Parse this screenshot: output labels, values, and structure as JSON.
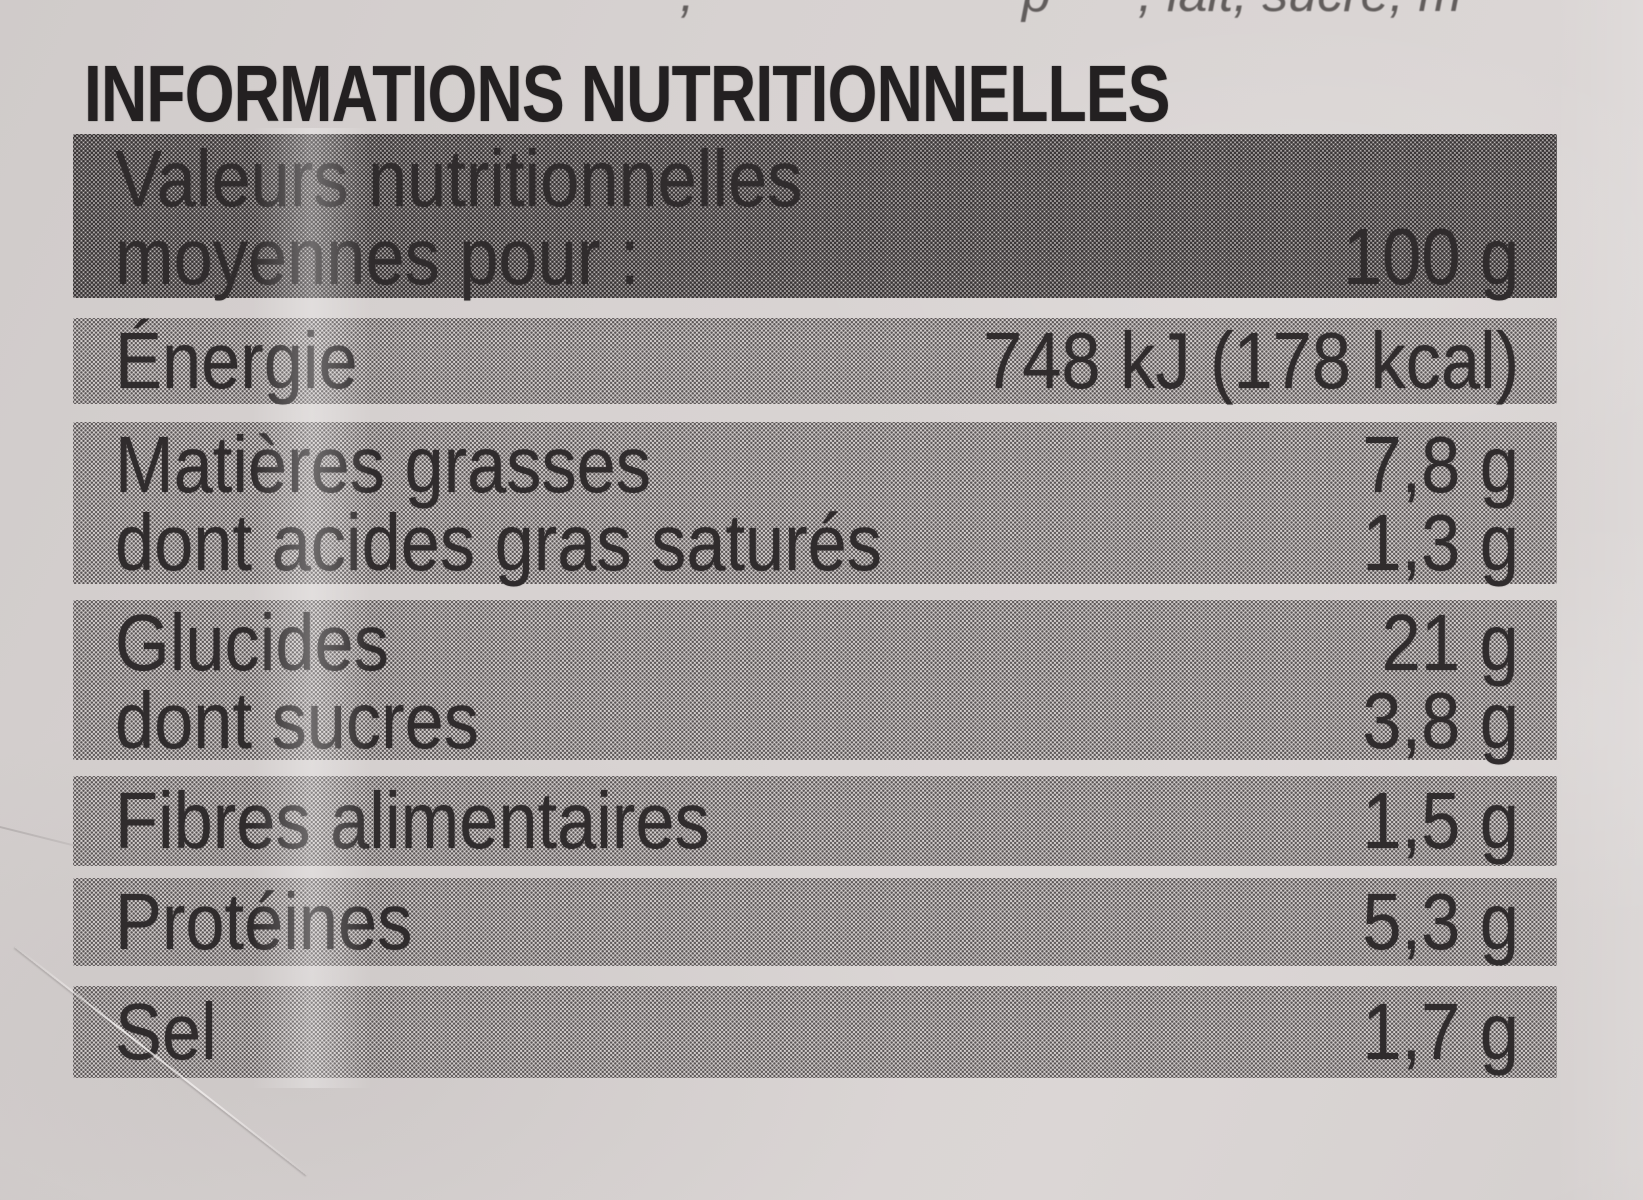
{
  "photo": {
    "top_edge_fragments": [
      ",",
      "p",
      ", lait, sucre, m"
    ]
  },
  "title": "INFORMATIONS NUTRITIONNELLES",
  "table": {
    "header": {
      "line1": "Valeurs nutritionnelles",
      "line2": "moyennes pour :",
      "value": "100 g"
    },
    "rows": [
      {
        "id": "energie",
        "lines": [
          {
            "label": "Énergie",
            "value": "748 kJ (178 kcal)"
          }
        ]
      },
      {
        "id": "matieres",
        "lines": [
          {
            "label": "Matières grasses",
            "value": "7,8 g"
          },
          {
            "label": "dont acides gras saturés",
            "value": "1,3 g"
          }
        ]
      },
      {
        "id": "glucides",
        "lines": [
          {
            "label": "Glucides",
            "value": "21 g"
          },
          {
            "label": "dont sucres",
            "value": "3,8 g"
          }
        ]
      },
      {
        "id": "fibres",
        "lines": [
          {
            "label": "Fibres alimentaires",
            "value": "1,5 g"
          }
        ]
      },
      {
        "id": "proteines",
        "lines": [
          {
            "label": "Protéines",
            "value": "5,3 g"
          }
        ]
      },
      {
        "id": "sel",
        "lines": [
          {
            "label": "Sel",
            "value": "1,7 g"
          }
        ]
      }
    ]
  },
  "colors": {
    "paper": "#d7d2d1",
    "row_halftone_avg": "#aba6a5",
    "header_halftone_avg": "#9c9798",
    "ink": "#302c2d"
  }
}
